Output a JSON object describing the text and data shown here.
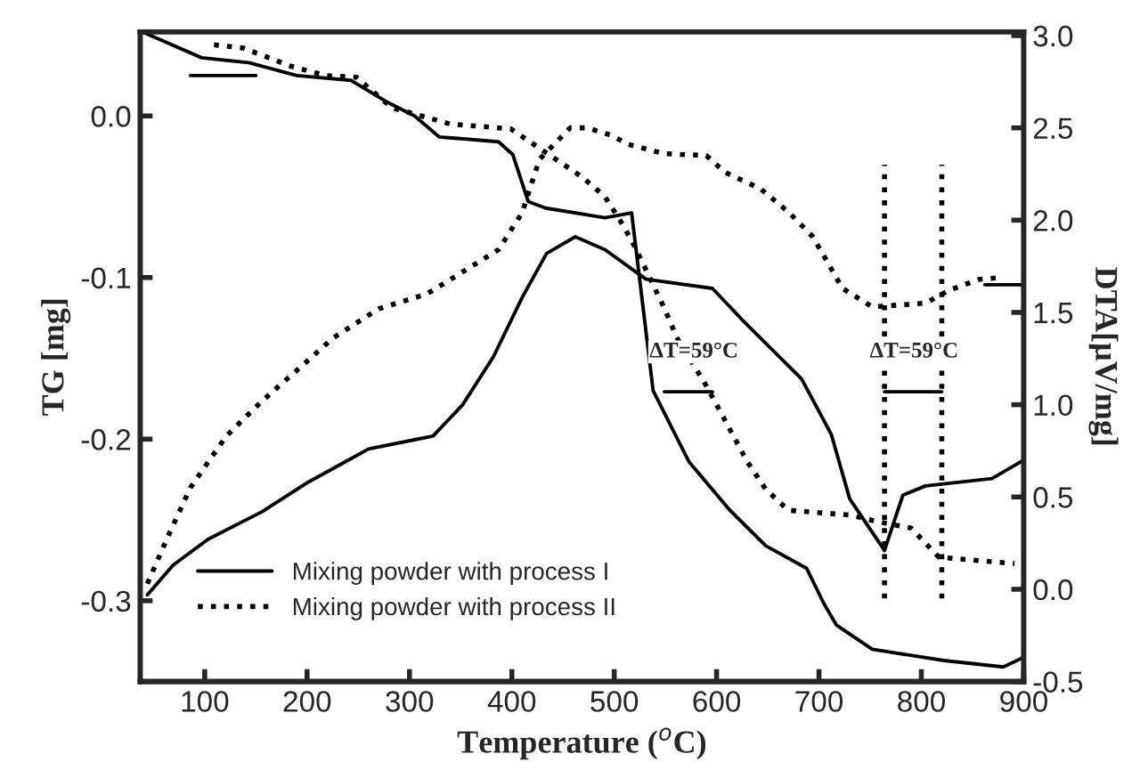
{
  "chart_data": {
    "type": "line",
    "xlabel": "Temperature ($^{o}$C)",
    "ylabel": "TG [mg]",
    "y2label": "DTA[μV/mg]",
    "xlim": [
      37,
      900
    ],
    "xticks": [
      100,
      200,
      300,
      400,
      500,
      600,
      700,
      800,
      900
    ],
    "ylim": [
      -0.35,
      0.052
    ],
    "yticks": [
      -0.3,
      -0.2,
      -0.1,
      {
        "value": 0,
        "label": "0.0"
      }
    ],
    "y2lim": [
      -0.5,
      3.02
    ],
    "y2ticks": [
      -0.5,
      {
        "value": 0,
        "label": "0.0"
      },
      0.5,
      {
        "value": 1,
        "label": "1.0"
      },
      1.5,
      {
        "value": 2,
        "label": "2.0"
      },
      2.5,
      {
        "value": 3,
        "label": "3.0"
      }
    ],
    "legend": "bottom left",
    "grid": false,
    "series": [
      {
        "name": "Mixing powder with process I",
        "color": "#000000",
        "line_style": "solid",
        "axis": "y",
        "x": [
          39,
          97,
          143,
          190,
          243,
          277,
          305,
          329,
          387,
          401,
          416,
          433,
          491,
          517,
          538,
          573,
          613,
          648,
          688,
          705,
          717,
          752,
          822,
          880,
          900
        ],
        "values": [
          0.052,
          0.036,
          0.033,
          0.025,
          0.022,
          0.009,
          0.0,
          -0.013,
          -0.016,
          -0.024,
          -0.053,
          -0.057,
          -0.063,
          -0.06,
          -0.17,
          -0.214,
          -0.244,
          -0.266,
          -0.28,
          -0.302,
          -0.315,
          -0.33,
          -0.337,
          -0.341,
          -0.335
        ]
      },
      {
        "name": "Mixing powder with process II",
        "color": "#000000",
        "line_style": "dotted",
        "axis": "y",
        "x": [
          109,
          138,
          183,
          218,
          248,
          283,
          340,
          399,
          469,
          491,
          509,
          521,
          549,
          561,
          590,
          630,
          648,
          670,
          730,
          757,
          790,
          817,
          891
        ],
        "values": [
          0.044,
          0.042,
          0.031,
          0.025,
          0.024,
          0.005,
          -0.005,
          -0.008,
          -0.038,
          -0.05,
          -0.068,
          -0.082,
          -0.119,
          -0.137,
          -0.167,
          -0.214,
          -0.231,
          -0.244,
          -0.247,
          -0.251,
          -0.255,
          -0.273,
          -0.277
        ]
      },
      {
        "color": "#000000",
        "line_style": "solid",
        "axis": "y2",
        "x": [
          44,
          69,
          103,
          156,
          201,
          260,
          305,
          323,
          352,
          382,
          410,
          434,
          462,
          491,
          531,
          596,
          625,
          683,
          712,
          730,
          764,
          782,
          804,
          869,
          900
        ],
        "values": [
          -0.03,
          0.13,
          0.27,
          0.42,
          0.58,
          0.76,
          0.81,
          0.83,
          1.0,
          1.26,
          1.58,
          1.82,
          1.91,
          1.84,
          1.68,
          1.63,
          1.46,
          1.14,
          0.84,
          0.49,
          0.21,
          0.51,
          0.56,
          0.6,
          0.7
        ]
      },
      {
        "color": "#000000",
        "line_style": "dotted",
        "axis": "y2",
        "x": [
          44,
          62,
          86,
          121,
          156,
          201,
          225,
          270,
          317,
          352,
          387,
          410,
          427,
          457,
          474,
          497,
          514,
          549,
          590,
          608,
          643,
          671,
          694,
          723,
          752,
          804,
          827,
          857,
          880
        ],
        "values": [
          0.03,
          0.26,
          0.55,
          0.83,
          1.02,
          1.24,
          1.36,
          1.52,
          1.6,
          1.72,
          1.84,
          2.04,
          2.33,
          2.5,
          2.5,
          2.46,
          2.41,
          2.36,
          2.35,
          2.26,
          2.17,
          2.04,
          1.91,
          1.63,
          1.53,
          1.55,
          1.62,
          1.68,
          1.69
        ]
      },
      {
        "color": "#000000",
        "line_style": "dotted",
        "axis": "y2",
        "x": [
          764,
          764
        ],
        "values": [
          -0.05,
          2.3
        ]
      },
      {
        "color": "#000000",
        "line_style": "dotted",
        "axis": "y2",
        "x": [
          820,
          820
        ],
        "values": [
          -0.05,
          2.3
        ]
      },
      {
        "color": "#000000",
        "line_style": "solid",
        "axis": "y2",
        "x": [
          549,
          596
        ],
        "values": [
          1.07,
          1.07
        ]
      },
      {
        "color": "#000000",
        "line_style": "solid",
        "axis": "y2",
        "x": [
          764,
          820
        ],
        "values": [
          1.07,
          1.07
        ]
      },
      {
        "color": "#000000",
        "line_style": "solid",
        "axis": "y",
        "x": [
          86,
          150
        ],
        "values": [
          0.025,
          0.025
        ]
      },
      {
        "color": "#000000",
        "line_style": "solid",
        "axis": "y2",
        "x": [
          862,
          900
        ],
        "values": [
          1.65,
          1.65
        ]
      }
    ],
    "annotations": [
      "ΔT=59°C",
      "ΔT=59°C"
    ]
  }
}
